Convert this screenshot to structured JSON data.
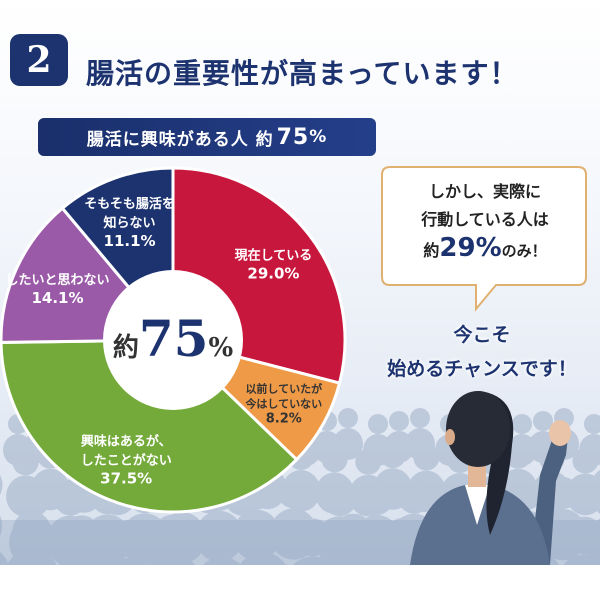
{
  "header": {
    "number": "2",
    "title": "腸活の重要性が高まっています！"
  },
  "banner": {
    "text": "腸活に興味がある人 約",
    "value": "75",
    "unit": "%"
  },
  "chart_data": {
    "type": "pie",
    "title": "",
    "center_label": {
      "prefix": "約",
      "value": "75",
      "unit": "%"
    },
    "slices": [
      {
        "label_lines": [
          "現在している"
        ],
        "value": 29.0,
        "display": "29.0%",
        "color": "#c8173d",
        "text_color": "#ffffff"
      },
      {
        "label_lines": [
          "以前していたが",
          "今はしていない"
        ],
        "value": 8.2,
        "display": "8.2%",
        "color": "#ef9a47",
        "text_color": "#333333"
      },
      {
        "label_lines": [
          "興味はあるが、",
          "したことがない"
        ],
        "value": 37.5,
        "display": "37.5%",
        "color": "#73aa3a",
        "text_color": "#ffffff"
      },
      {
        "label_lines": [
          "したいと思わない"
        ],
        "value": 14.1,
        "display": "14.1%",
        "color": "#9a5aa8",
        "text_color": "#ffffff"
      },
      {
        "label_lines": [
          "そもそも腸活を",
          "知らない"
        ],
        "value": 11.1,
        "display": "11.1%",
        "color": "#1d3370",
        "text_color": "#ffffff"
      }
    ]
  },
  "callout": {
    "line1": "しかし、実際に",
    "line2": "行動している人は",
    "line3_prefix": "約",
    "line3_value": "29",
    "line3_unit": "%",
    "line3_suffix": "のみ！"
  },
  "cta": {
    "line1": "今こそ",
    "line2": "始めるチャンスです！"
  },
  "colors": {
    "navy": "#1d3370",
    "bubble_border": "#e0b070"
  }
}
